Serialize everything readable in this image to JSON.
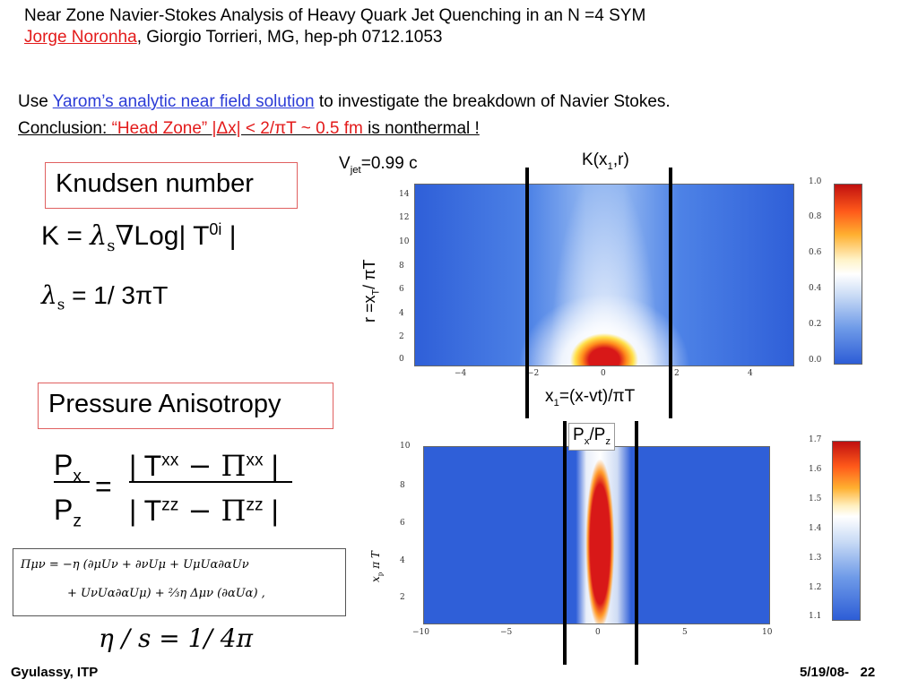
{
  "header": {
    "title": "Near Zone Navier-Stokes Analysis of Heavy Quark Jet Quenching in an N =4 SYM",
    "author_link": "Jorge Noronha",
    "authors_rest": ", Giorgio Torrieri, MG,  hep-ph 0712.1053"
  },
  "intro": {
    "use_prefix": "Use ",
    "use_link": "Yarom’s analytic near field solution",
    "use_suffix": " to investigate the breakdown of Navier Stokes.",
    "conclusion_label": "Conclusion: ",
    "conclusion_red": "“Head Zone” |Δx|  <  2/πT ~ 0.5 fm ",
    "conclusion_tail": "is nonthermal !"
  },
  "knudsen": {
    "box_label": "Knudsen number",
    "formula_lhs": "K = ",
    "formula_log": "Log",
    "formula_T": "| T",
    "formula_sup": "0i",
    "formula_end": " |",
    "lambda_sub": "s",
    "lambda_rhs": " = 1/ 3πT"
  },
  "pressure": {
    "box_label": "Pressure Anisotropy",
    "num": "| T",
    "num_sup": "xx",
    "num_pi": " − Π",
    "num_pi_sup": "xx",
    "num_end": " |",
    "den": "| T",
    "den_sup": "zz",
    "den_pi": " − Π",
    "den_pi_sup": "zz",
    "den_end": " |",
    "lhs_top": "P",
    "lhs_top_sub": "x",
    "lhs_bot": "P",
    "lhs_bot_sub": "z",
    "eta_s": "η / s = 1/ 4π"
  },
  "pi_eq": {
    "line1": "Πμν  =  −η (∂μUν + ∂νUμ + UμUα∂αUν",
    "line2": "+  UνUα∂αUμ) + ⅔η Δμν (∂αUα) ,"
  },
  "plot_top": {
    "vjet": "V",
    "vjet_sub": "jet",
    "vjet_rest": "=0.99 c",
    "k_label": "K(x",
    "k_sub": "1",
    "k_rest": ",r)",
    "ylabel": "r =x",
    "ylabel_sub": "T",
    "ylabel_rest": "/ πT",
    "xlabel": "x",
    "xlabel_sub": "1",
    "xlabel_rest": "=(x-vt)/πT",
    "yticks": [
      "14",
      "12",
      "10",
      "8",
      "6",
      "4",
      "2",
      "0"
    ],
    "xticks": [
      "−4",
      "−2",
      "0",
      "2",
      "4"
    ],
    "cbar_ticks": [
      "1.0",
      "0.8",
      "0.6",
      "0.4",
      "0.2",
      "0.0"
    ]
  },
  "plot_bottom": {
    "label": "P",
    "label_sub": "x",
    "label_mid": "/P",
    "label_sub2": "z",
    "ylabel": "x",
    "ylabel_sub": "p",
    "ylabel_rest": " π T",
    "yticks": [
      "10",
      "8",
      "6",
      "4",
      "2"
    ],
    "xticks": [
      "−10",
      "−5",
      "0",
      "5",
      "10"
    ],
    "cbar_ticks": [
      "1.7",
      "1.6",
      "1.5",
      "1.4",
      "1.3",
      "1.2",
      "1.1"
    ]
  },
  "footer": {
    "left": "Gyulassy, ITP",
    "right": "5/19/08-   22"
  },
  "colors": {
    "title_red": "#e31b1b",
    "link_blue": "#2b3bd6",
    "box_border": "#e06060",
    "plot_blue": "#2f5fd8"
  }
}
